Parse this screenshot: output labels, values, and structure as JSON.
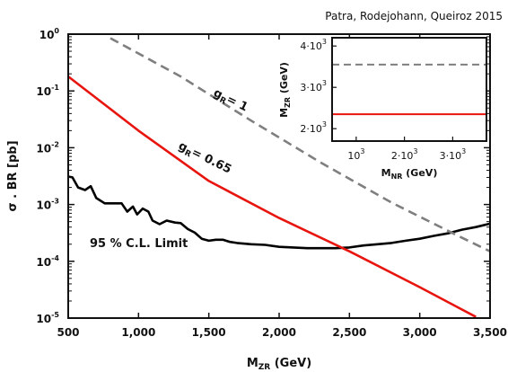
{
  "credit": "Patra, Rodejohann, Queiroz 2015",
  "chart_data": [
    {
      "type": "line",
      "xlabel": {
        "main": "M",
        "sub": "ZR",
        "unit": " (GeV)"
      },
      "ylabel": "σ . BR [pb]",
      "xlim": [
        500,
        3500
      ],
      "ylim": [
        1e-05,
        1
      ],
      "y_scale": "log",
      "x_ticks": [
        500,
        1000,
        1500,
        2000,
        2500,
        3000,
        3500
      ],
      "x_tick_labels": [
        "500",
        "1,000",
        "1,500",
        "2,000",
        "2,500",
        "3,000",
        "3,500"
      ],
      "y_ticks": [
        1e-05,
        0.0001,
        0.001,
        0.01,
        0.1,
        1
      ],
      "y_tick_labels": [
        {
          "base": "10",
          "exp": "-5"
        },
        {
          "base": "10",
          "exp": "-4"
        },
        {
          "base": "10",
          "exp": "-3"
        },
        {
          "base": "10",
          "exp": "-2"
        },
        {
          "base": "10",
          "exp": "-1"
        },
        {
          "base": "10",
          "exp": "0"
        }
      ],
      "grid": false,
      "annotations": {
        "limit": "95 % C.L. Limit",
        "g065": {
          "main": "g",
          "sub": "R",
          "rest": "= 0.65"
        },
        "g1": {
          "main": "g",
          "sub": "R",
          "rest": "= 1"
        }
      },
      "series": [
        {
          "color": "#000000",
          "dash": "solid",
          "x": [
            500,
            530,
            570,
            620,
            660,
            700,
            760,
            820,
            880,
            920,
            960,
            990,
            1030,
            1070,
            1100,
            1150,
            1200,
            1260,
            1300,
            1350,
            1400,
            1450,
            1500,
            1550,
            1600,
            1650,
            1700,
            1800,
            1900,
            2000,
            2100,
            2200,
            2300,
            2400,
            2500,
            2600,
            2700,
            2800,
            2900,
            3000,
            3100,
            3200,
            3300,
            3400,
            3500
          ],
          "y": [
            0.0031,
            0.003,
            0.002,
            0.0018,
            0.0021,
            0.0013,
            0.00105,
            0.00105,
            0.00105,
            0.00075,
            0.00092,
            0.00067,
            0.00085,
            0.00075,
            0.00052,
            0.00045,
            0.00052,
            0.00048,
            0.00047,
            0.00037,
            0.00032,
            0.00025,
            0.00023,
            0.00024,
            0.00024,
            0.00022,
            0.00021,
            0.0002,
            0.000195,
            0.00018,
            0.000175,
            0.00017,
            0.00017,
            0.00017,
            0.000175,
            0.00019,
            0.0002,
            0.00021,
            0.00023,
            0.00025,
            0.00028,
            0.00031,
            0.00036,
            0.0004,
            0.00046
          ]
        },
        {
          "color": "#e8150f",
          "dash": "solid",
          "x": [
            500,
            1000,
            1500,
            2000,
            2500,
            3000,
            3400
          ],
          "y": [
            0.18,
            0.02,
            0.0026,
            0.00058,
            0.00015,
            3.5e-05,
            1.05e-05
          ]
        },
        {
          "color": "#7f7f7f",
          "dash": "dashed",
          "x": [
            800,
            1300,
            1800,
            2300,
            2800,
            3300,
            3500
          ],
          "y": [
            0.85,
            0.18,
            0.03,
            0.0054,
            0.00108,
            0.00026,
            0.00015
          ]
        }
      ]
    },
    {
      "type": "line",
      "inset": true,
      "xlabel": {
        "main": "M",
        "sub": "NR",
        "unit": " (GeV)"
      },
      "ylabel": {
        "main": "M",
        "sub": "ZR",
        "unit": " (GeV)"
      },
      "xlim": [
        500,
        3700
      ],
      "ylim": [
        1700,
        4200
      ],
      "x_ticks": [
        1000,
        2000,
        3000
      ],
      "x_tick_labels": [
        {
          "base": "10",
          "exp": "3"
        },
        {
          "base": "2·10",
          "exp": "3"
        },
        {
          "base": "3·10",
          "exp": "3"
        }
      ],
      "y_ticks": [
        2000,
        3000,
        4000
      ],
      "y_tick_labels": [
        {
          "base": "2·10",
          "exp": "3"
        },
        {
          "base": "3·10",
          "exp": "3"
        },
        {
          "base": "4·10",
          "exp": "3"
        }
      ],
      "series": [
        {
          "color": "#7f7f7f",
          "dash": "dashed",
          "x": [
            500,
            3700
          ],
          "y": [
            3550,
            3550
          ]
        },
        {
          "color": "#e8150f",
          "dash": "solid",
          "x": [
            500,
            3700
          ],
          "y": [
            2350,
            2350
          ]
        }
      ]
    }
  ]
}
